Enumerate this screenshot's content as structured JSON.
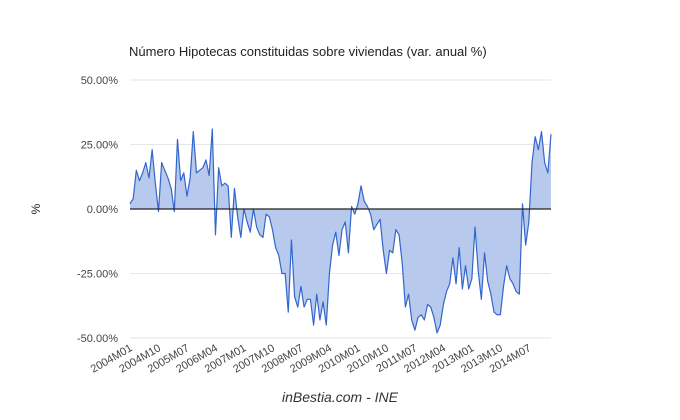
{
  "chart_data": {
    "type": "area",
    "title": "Número Hipotecas constituidas sobre viviendas (var. anual %)",
    "ylabel": "%",
    "xlabel": "",
    "ylim": [
      -50,
      50
    ],
    "y_ticks": [
      50,
      25,
      0,
      -25,
      -50
    ],
    "y_tick_labels": [
      "50.00%",
      "25.00%",
      "0.00%",
      "-25.00%",
      "-50.00%"
    ],
    "x_tick_labels": [
      "2004M01",
      "2004M10",
      "2005M07",
      "2006M04",
      "2007M01",
      "2007M10",
      "2008M07",
      "2009M04",
      "2010M01",
      "2010M10",
      "2011M07",
      "2012M04",
      "2013M01",
      "2013M10",
      "2014M07"
    ],
    "grid": true,
    "legend": "none",
    "series": [
      {
        "x_start": "2004M01",
        "values": [
          2,
          4,
          15,
          11,
          14,
          18,
          12,
          23,
          10,
          -1,
          18,
          15,
          12,
          8,
          -1,
          27,
          11,
          14,
          5,
          12,
          30,
          14,
          15,
          16,
          19,
          13,
          31,
          -10,
          16,
          9,
          10,
          9,
          -11,
          8,
          -3,
          -11,
          0,
          -5,
          -9,
          0,
          -7,
          -10,
          -11,
          -2,
          -3,
          -8,
          -15,
          -18,
          -25,
          -25,
          -40,
          -12,
          -34,
          -38,
          -30,
          -38,
          -35,
          -35,
          -45,
          -33,
          -43,
          -36,
          -45,
          -25,
          -14,
          -9,
          -18,
          -8,
          -5,
          -17,
          1,
          -2,
          2,
          9,
          3,
          1,
          -2,
          -8,
          -6,
          -4,
          -16,
          -25,
          -16,
          -17,
          -8,
          -10,
          -21,
          -38,
          -33,
          -43,
          -47,
          -42,
          -41,
          -43,
          -37,
          -38,
          -42,
          -48,
          -45,
          -37,
          -32,
          -29,
          -19,
          -29,
          -15,
          -31,
          -22,
          -31,
          -27,
          -7,
          -24,
          -35,
          -17,
          -28,
          -33,
          -40,
          -41,
          -41,
          -30,
          -22,
          -27,
          -29,
          -32,
          -33,
          2,
          -14,
          -5,
          18,
          28,
          23,
          30,
          18,
          14,
          29
        ]
      }
    ],
    "colors": {
      "line": "#3366cc",
      "fill": "#b7c9ed",
      "zero_line": "#222222",
      "grid": "#e6e6e6"
    },
    "source_caption": "inBestia.com - INE"
  }
}
